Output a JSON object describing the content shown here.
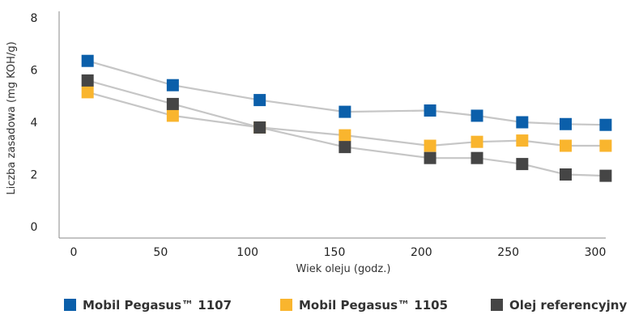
{
  "chart_data": {
    "type": "line",
    "xlabel": "Wiek oleju (godz.)",
    "ylabel": "Liczba zasadowa (mg KOH/g)",
    "xlim": [
      0,
      300
    ],
    "ylim": [
      0,
      8
    ],
    "x_ticks": [
      0,
      50,
      100,
      150,
      200,
      250,
      300
    ],
    "y_ticks": [
      0,
      2,
      4,
      6,
      8
    ],
    "grid": false,
    "legend_position": "bottom",
    "series": [
      {
        "name": "Mobil Pegasus™ 1107",
        "color": "#0B5FAA",
        "x": [
          8,
          57,
          107,
          156,
          205,
          232,
          258,
          283,
          306
        ],
        "y": [
          6.35,
          5.42,
          4.85,
          4.4,
          4.45,
          4.25,
          4.0,
          3.93,
          3.9
        ]
      },
      {
        "name": "Mobil Pegasus™ 1105",
        "color": "#F9B52E",
        "x": [
          8,
          57,
          107,
          156,
          205,
          232,
          258,
          283,
          306
        ],
        "y": [
          5.15,
          4.25,
          3.8,
          3.5,
          3.1,
          3.25,
          3.3,
          3.1,
          3.1
        ]
      },
      {
        "name": "Olej referencyjny",
        "color": "#454545",
        "x": [
          8,
          57,
          107,
          156,
          205,
          232,
          258,
          283,
          306
        ],
        "y": [
          5.6,
          4.7,
          3.8,
          3.05,
          2.63,
          2.63,
          2.4,
          2.0,
          1.95
        ]
      }
    ]
  }
}
